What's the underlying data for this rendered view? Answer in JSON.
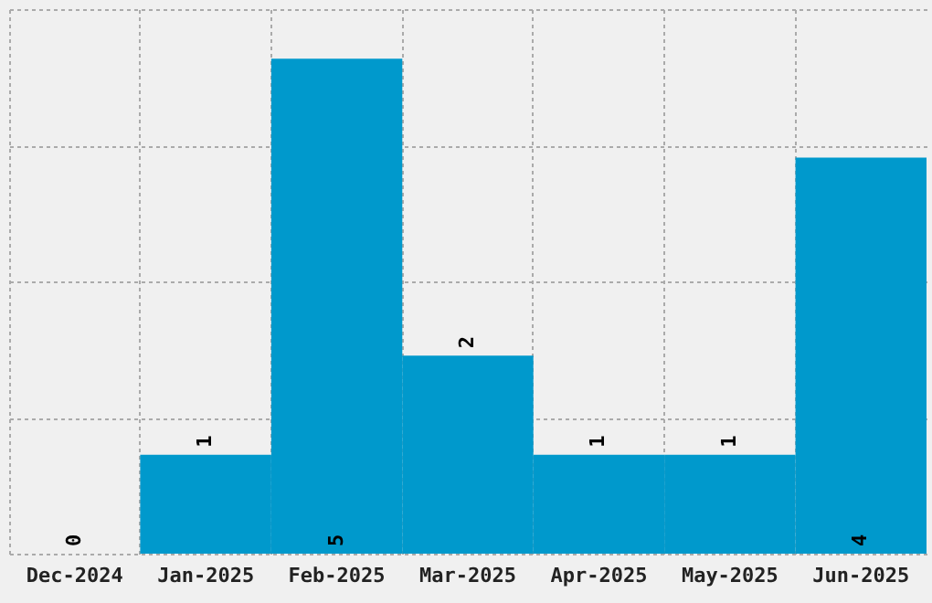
{
  "chart_data": {
    "type": "bar",
    "categories": [
      "Dec-2024",
      "Jan-2025",
      "Feb-2025",
      "Mar-2025",
      "Apr-2025",
      "May-2025",
      "Jun-2025"
    ],
    "values": [
      0,
      1,
      5,
      2,
      1,
      1,
      4
    ],
    "color": "#0099cc",
    "ylim": [
      0,
      5.5
    ],
    "yticks": [
      {
        "value": 0,
        "label": null
      },
      {
        "value": 1.375,
        "label": null
      },
      {
        "value": 2.75,
        "label": null
      },
      {
        "value": 4.125,
        "label": null
      },
      {
        "value": 5.5,
        "label": null
      }
    ],
    "tick_labels": "x",
    "grid": true,
    "data_labels": true
  }
}
